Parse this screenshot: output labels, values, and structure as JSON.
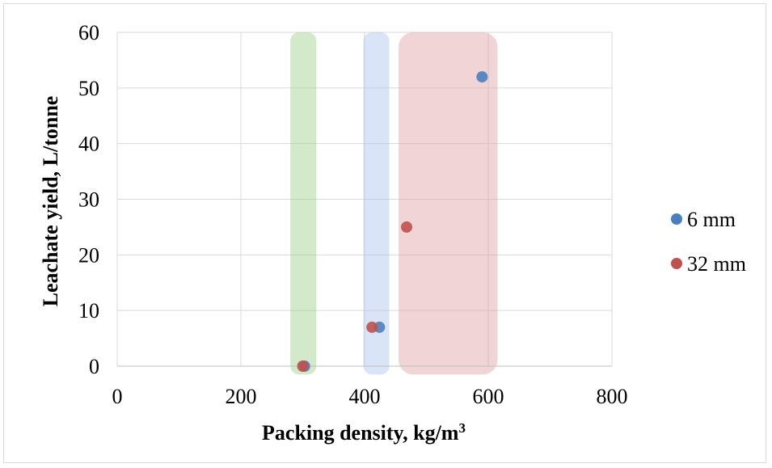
{
  "chart_data": {
    "type": "scatter",
    "title": "",
    "xlabel": "Packing density, kg/m",
    "xlabel_superscript": "3",
    "ylabel": "Leachate yield, L/tonne",
    "xlim": [
      0,
      800
    ],
    "ylim": [
      0,
      60
    ],
    "xticks": [
      0,
      200,
      400,
      600,
      800
    ],
    "yticks": [
      0,
      10,
      20,
      30,
      40,
      50,
      60
    ],
    "x_tick_labels": [
      "0",
      "200",
      "400",
      "600",
      "800"
    ],
    "y_tick_labels": [
      "0",
      "10",
      "20",
      "30",
      "40",
      "50",
      "60"
    ],
    "grid": "both",
    "legend_position": "right",
    "series": [
      {
        "name": "6 mm",
        "color": "#4a7fbe",
        "points": [
          {
            "x": 303,
            "y": 0
          },
          {
            "x": 424,
            "y": 7
          },
          {
            "x": 590,
            "y": 52
          }
        ]
      },
      {
        "name": "32 mm",
        "color": "#c0504d",
        "points": [
          {
            "x": 300,
            "y": 0
          },
          {
            "x": 412,
            "y": 7
          },
          {
            "x": 468,
            "y": 25
          }
        ]
      }
    ],
    "highlight_bands": [
      {
        "color": "#9bcf8a",
        "x_range": [
          280,
          322
        ],
        "y_range": [
          -1.5,
          60
        ]
      },
      {
        "color": "#aac5ea",
        "x_range": [
          398,
          440
        ],
        "y_range": [
          -1.5,
          60
        ]
      },
      {
        "color": "#dfa0a2",
        "x_range": [
          455,
          615
        ],
        "y_range": [
          -1.5,
          60
        ]
      }
    ]
  }
}
